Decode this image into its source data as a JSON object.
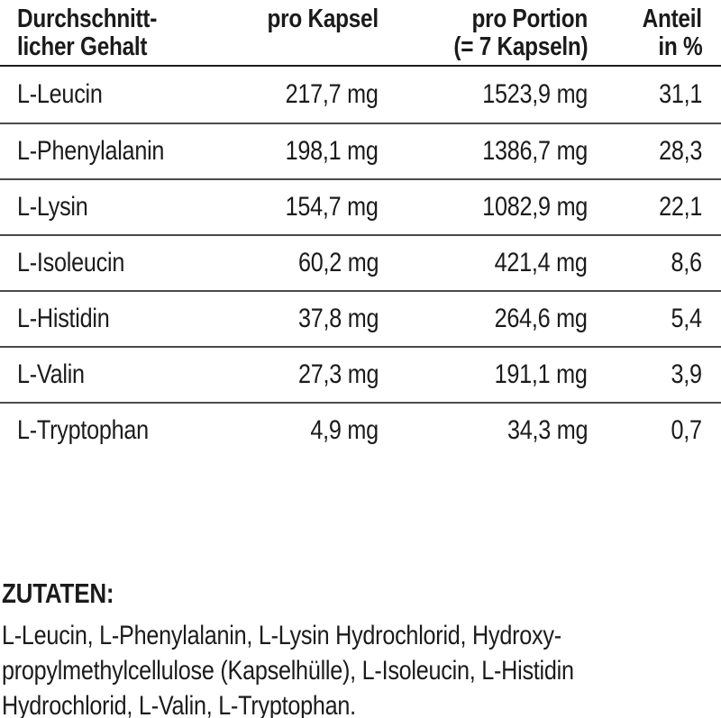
{
  "table": {
    "header": {
      "col1_line1": "Durchschnitt-",
      "col1_line2": "licher Gehalt",
      "col2_line1": "pro Kapsel",
      "col3_line1": "pro Portion",
      "col3_line2": "(= 7 Kapseln)",
      "col4_line1": "Anteil",
      "col4_line2": "in %"
    },
    "rows": [
      {
        "name": "L-Leucin",
        "per_capsule": "217,7 mg",
        "per_portion": "1523,9 mg",
        "share_percent": "31,1"
      },
      {
        "name": "L-Phenylalanin",
        "per_capsule": "198,1 mg",
        "per_portion": "1386,7 mg",
        "share_percent": "28,3"
      },
      {
        "name": "L-Lysin",
        "per_capsule": "154,7 mg",
        "per_portion": "1082,9 mg",
        "share_percent": "22,1"
      },
      {
        "name": "L-Isoleucin",
        "per_capsule": "60,2 mg",
        "per_portion": "421,4 mg",
        "share_percent": "8,6"
      },
      {
        "name": "L-Histidin",
        "per_capsule": "37,8 mg",
        "per_portion": "264,6 mg",
        "share_percent": "5,4"
      },
      {
        "name": "L-Valin",
        "per_capsule": "27,3 mg",
        "per_portion": "191,1 mg",
        "share_percent": "3,9"
      },
      {
        "name": "L-Tryptophan",
        "per_capsule": "4,9 mg",
        "per_portion": "34,3 mg",
        "share_percent": "0,7"
      }
    ]
  },
  "ingredients": {
    "heading": "ZUTATEN:",
    "lines": [
      "L-Leucin, L-Phenylalanin, L-Lysin Hydrochlorid, Hydroxy-",
      "propylmethylcellulose (Kapselhülle), L-Isoleucin, L-Histidin",
      "Hydrochlorid, L-Valin, L-Tryptophan."
    ]
  },
  "colors": {
    "text": "#1b1b1b",
    "header_rule": "#1d1d1d",
    "row_rule": "#4a4a4a",
    "background": "#ffffff"
  }
}
